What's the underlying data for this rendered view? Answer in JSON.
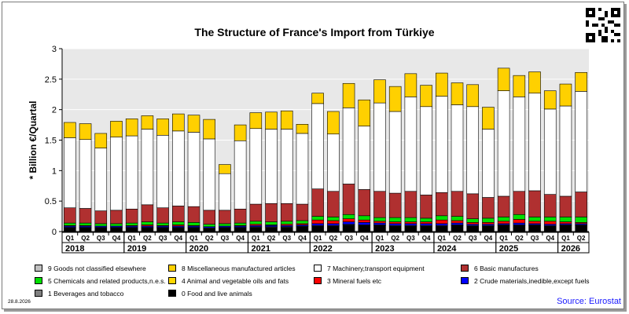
{
  "chart_data": {
    "type": "bar",
    "stacked": true,
    "title": "The Structure of France's Import from Türkiye",
    "ylabel": "* Billion €/Quartal",
    "xlabel": "",
    "ylim": [
      0,
      3
    ],
    "yticks": [
      0,
      0.5,
      1,
      1.5,
      2,
      2.5,
      3
    ],
    "ytick_labels": [
      "0",
      "0.5",
      "1",
      "1.5",
      "2",
      "2.5",
      "3"
    ],
    "grid": true,
    "legend_position": "bottom",
    "categories": [
      "2018 Q1",
      "2018 Q2",
      "2018 Q3",
      "2018 Q4",
      "2019 Q1",
      "2019 Q2",
      "2019 Q3",
      "2019 Q4",
      "2020 Q1",
      "2020 Q2",
      "2020 Q3",
      "2020 Q4",
      "2021 Q1",
      "2021 Q2",
      "2021 Q3",
      "2021 Q4",
      "2022 Q1",
      "2022 Q2",
      "2022 Q3",
      "2022 Q4",
      "2023 Q1",
      "2023 Q2",
      "2023 Q3",
      "2023 Q4",
      "2024 Q1",
      "2024 Q2",
      "2024 Q3",
      "2024 Q4",
      "2025 Q1",
      "2025 Q2",
      "2025 Q3",
      "2025 Q4",
      "2026 Q1",
      "2026 Q2"
    ],
    "quarter_labels": [
      "Q1",
      "Q2",
      "Q3",
      "Q4",
      "Q1",
      "Q2",
      "Q3",
      "Q4",
      "Q1",
      "Q2",
      "Q3",
      "Q4",
      "Q1",
      "Q2",
      "Q3",
      "Q4",
      "Q1",
      "Q2",
      "Q3",
      "Q4",
      "Q1",
      "Q2",
      "Q3",
      "Q4",
      "Q1",
      "Q2",
      "Q3",
      "Q4",
      "Q1",
      "Q2",
      "Q3",
      "Q4",
      "Q1",
      "Q2"
    ],
    "years": [
      "2018",
      "2019",
      "2020",
      "2021",
      "2022",
      "2023",
      "2024",
      "2025",
      "2026"
    ],
    "series": [
      {
        "name": "0 Food and live animals",
        "color": "#000000",
        "values": [
          0.06,
          0.06,
          0.06,
          0.06,
          0.06,
          0.06,
          0.06,
          0.06,
          0.06,
          0.05,
          0.06,
          0.06,
          0.07,
          0.07,
          0.07,
          0.08,
          0.09,
          0.09,
          0.11,
          0.1,
          0.1,
          0.09,
          0.09,
          0.09,
          0.09,
          0.1,
          0.09,
          0.09,
          0.1,
          0.1,
          0.1,
          0.09,
          0.1,
          0.1
        ]
      },
      {
        "name": "1 Beverages and tobacco",
        "color": "#808080",
        "values": [
          0.01,
          0.01,
          0.01,
          0.01,
          0.01,
          0.01,
          0.01,
          0.01,
          0.01,
          0.01,
          0.01,
          0.01,
          0.01,
          0.01,
          0.01,
          0.01,
          0.01,
          0.01,
          0.01,
          0.01,
          0.01,
          0.01,
          0.01,
          0.01,
          0.01,
          0.01,
          0.01,
          0.01,
          0.01,
          0.01,
          0.01,
          0.01,
          0.01,
          0.01
        ]
      },
      {
        "name": "2 Crude materials,inedible,except fuels",
        "color": "#0000ff",
        "values": [
          0.02,
          0.02,
          0.02,
          0.02,
          0.02,
          0.02,
          0.02,
          0.02,
          0.02,
          0.02,
          0.02,
          0.02,
          0.02,
          0.02,
          0.02,
          0.02,
          0.03,
          0.03,
          0.04,
          0.04,
          0.03,
          0.03,
          0.03,
          0.03,
          0.03,
          0.03,
          0.02,
          0.02,
          0.02,
          0.03,
          0.02,
          0.02,
          0.02,
          0.02
        ]
      },
      {
        "name": "3 Mineral fuels etc",
        "color": "#ff0000",
        "values": [
          0.01,
          0.01,
          0.0,
          0.0,
          0.01,
          0.02,
          0.01,
          0.02,
          0.01,
          0.0,
          0.0,
          0.01,
          0.02,
          0.01,
          0.02,
          0.02,
          0.06,
          0.05,
          0.05,
          0.04,
          0.03,
          0.03,
          0.03,
          0.03,
          0.06,
          0.04,
          0.03,
          0.03,
          0.04,
          0.06,
          0.04,
          0.05,
          0.03,
          0.02
        ]
      },
      {
        "name": "4 Animal and vegetable oils and fats",
        "color": "#ffd700",
        "values": [
          0.0,
          0.0,
          0.0,
          0.0,
          0.0,
          0.0,
          0.0,
          0.0,
          0.0,
          0.0,
          0.0,
          0.0,
          0.0,
          0.0,
          0.0,
          0.0,
          0.0,
          0.0,
          0.0,
          0.0,
          0.0,
          0.0,
          0.0,
          0.0,
          0.0,
          0.0,
          0.0,
          0.0,
          0.0,
          0.0,
          0.0,
          0.0,
          0.0,
          0.0
        ]
      },
      {
        "name": "5 Chemicals and related products,n.e.s.",
        "color": "#00e000",
        "values": [
          0.04,
          0.04,
          0.04,
          0.04,
          0.04,
          0.05,
          0.04,
          0.05,
          0.05,
          0.04,
          0.04,
          0.04,
          0.05,
          0.05,
          0.05,
          0.05,
          0.06,
          0.06,
          0.07,
          0.07,
          0.06,
          0.07,
          0.07,
          0.06,
          0.07,
          0.07,
          0.06,
          0.07,
          0.07,
          0.08,
          0.07,
          0.07,
          0.08,
          0.09
        ]
      },
      {
        "name": "6 Basic manufactures",
        "color": "#b03030",
        "values": [
          0.25,
          0.24,
          0.21,
          0.22,
          0.23,
          0.28,
          0.25,
          0.26,
          0.26,
          0.23,
          0.22,
          0.23,
          0.28,
          0.3,
          0.29,
          0.27,
          0.45,
          0.42,
          0.5,
          0.43,
          0.43,
          0.4,
          0.43,
          0.38,
          0.38,
          0.41,
          0.41,
          0.34,
          0.34,
          0.38,
          0.43,
          0.37,
          0.34,
          0.41
        ]
      },
      {
        "name": "7 Machinery,transport equipment",
        "color": "#ffffff",
        "values": [
          1.15,
          1.13,
          1.03,
          1.2,
          1.2,
          1.24,
          1.19,
          1.23,
          1.22,
          1.17,
          0.6,
          1.12,
          1.24,
          1.22,
          1.22,
          1.16,
          1.4,
          0.94,
          1.25,
          1.04,
          1.45,
          1.34,
          1.55,
          1.45,
          1.58,
          1.42,
          1.43,
          1.12,
          1.73,
          1.55,
          1.6,
          1.4,
          1.48,
          1.65
        ]
      },
      {
        "name": "8 Miscellaneous manufactured articles",
        "color": "#ffd000",
        "values": [
          0.25,
          0.26,
          0.24,
          0.26,
          0.28,
          0.22,
          0.27,
          0.28,
          0.28,
          0.32,
          0.15,
          0.26,
          0.26,
          0.28,
          0.3,
          0.15,
          0.17,
          0.37,
          0.4,
          0.43,
          0.38,
          0.41,
          0.38,
          0.35,
          0.38,
          0.36,
          0.36,
          0.36,
          0.37,
          0.35,
          0.35,
          0.3,
          0.36,
          0.31
        ]
      },
      {
        "name": "9 Goods not classified elsewhere",
        "color": "#c0c0c0",
        "values": [
          0.0,
          0.0,
          0.0,
          0.0,
          0.0,
          0.0,
          0.0,
          0.0,
          0.0,
          0.0,
          0.0,
          0.0,
          0.0,
          0.0,
          0.0,
          0.0,
          0.0,
          0.0,
          0.0,
          0.0,
          0.0,
          0.0,
          0.0,
          0.0,
          0.0,
          0.0,
          0.0,
          0.0,
          0.0,
          0.0,
          0.0,
          0.0,
          0.0,
          0.0
        ]
      }
    ]
  },
  "legend_order": [
    9,
    8,
    7,
    6,
    5,
    4,
    3,
    2,
    1,
    0
  ],
  "source": "Source: Eurostat",
  "date": "28.8.2026",
  "qr_icon": "qr-code-icon"
}
